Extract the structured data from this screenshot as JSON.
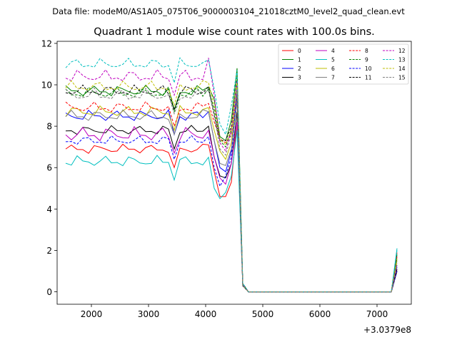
{
  "suptitle": "Data file: modeM0/AS1A05_075T06_9000003104_21018cztM0_level2_quad_clean.evt",
  "chart_data": {
    "type": "line",
    "title": "Quadrant 1 module wise count rates with 100.0s bins.",
    "xlabel": "",
    "ylabel": "",
    "x_offset_label": "+3.0379e8",
    "xlim": [
      1400,
      7600
    ],
    "ylim": [
      -0.6,
      12.1
    ],
    "xticks": [
      2000,
      3000,
      4000,
      5000,
      6000,
      7000
    ],
    "yticks": [
      0,
      2,
      4,
      6,
      8,
      10,
      12
    ],
    "grid": false,
    "legend_position": "top-right",
    "x": [
      1550,
      1650,
      1750,
      1850,
      1950,
      2050,
      2150,
      2250,
      2350,
      2450,
      2550,
      2650,
      2750,
      2850,
      2950,
      3050,
      3150,
      3250,
      3350,
      3450,
      3550,
      3650,
      3750,
      3850,
      3950,
      4050,
      4150,
      4250,
      4350,
      4450,
      4550,
      4650,
      4750,
      4850,
      4950,
      5050,
      5150,
      5250,
      5350,
      5450,
      5550,
      5650,
      5750,
      5850,
      5950,
      6050,
      6150,
      6250,
      6350,
      6450,
      6550,
      6650,
      6750,
      6850,
      6950,
      7050,
      7150,
      7250,
      7350
    ],
    "series": [
      {
        "name": "0",
        "color": "#ff0000",
        "dash": "solid",
        "base": 6.9,
        "amp": 0.25,
        "tr": [
          5.8,
          4.6,
          4.6,
          5.3,
          8.2,
          0.3,
          1.9
        ]
      },
      {
        "name": "1",
        "color": "#008000",
        "dash": "solid",
        "base": 9.7,
        "amp": 0.3,
        "tr": [
          9.3,
          7.5,
          7.3,
          8.3,
          10.8,
          0.4,
          1.8
        ]
      },
      {
        "name": "2",
        "color": "#0000ff",
        "dash": "solid",
        "base": 8.5,
        "amp": 0.3,
        "tr": [
          7.3,
          6.0,
          5.8,
          6.8,
          9.5,
          0.3,
          1.2
        ]
      },
      {
        "name": "3",
        "color": "#000000",
        "dash": "solid",
        "base": 7.8,
        "amp": 0.25,
        "tr": [
          6.5,
          5.6,
          5.5,
          6.2,
          8.7,
          0.3,
          1.0
        ]
      },
      {
        "name": "4",
        "color": "#bf00bf",
        "dash": "solid",
        "base": 7.6,
        "amp": 0.4,
        "tr": [
          6.5,
          5.5,
          5.2,
          6.2,
          8.2,
          0.3,
          1.1
        ]
      },
      {
        "name": "5",
        "color": "#00bfbf",
        "dash": "solid",
        "base": 6.3,
        "amp": 0.3,
        "tr": [
          5.0,
          4.5,
          4.8,
          5.6,
          7.8,
          0.3,
          2.1
        ]
      },
      {
        "name": "6",
        "color": "#bfbf00",
        "dash": "solid",
        "base": 8.7,
        "amp": 0.3,
        "tr": [
          7.8,
          6.8,
          6.4,
          7.2,
          9.6,
          0.3,
          1.6
        ]
      },
      {
        "name": "7",
        "color": "#808080",
        "dash": "solid",
        "base": 8.5,
        "amp": 0.3,
        "tr": [
          7.3,
          6.2,
          6.1,
          6.9,
          9.2,
          0.3,
          1.3
        ]
      },
      {
        "name": "8",
        "color": "#ff0000",
        "dash": "dashed",
        "base": 8.9,
        "amp": 0.3,
        "tr": [
          8.2,
          7.4,
          7.2,
          7.6,
          9.7,
          0.3,
          1.7
        ]
      },
      {
        "name": "9",
        "color": "#008000",
        "dash": "dashed",
        "base": 9.6,
        "amp": 0.3,
        "tr": [
          8.8,
          7.3,
          7.0,
          7.8,
          10.4,
          0.4,
          1.6
        ]
      },
      {
        "name": "10",
        "color": "#0000ff",
        "dash": "dashed",
        "base": 7.3,
        "amp": 0.25,
        "tr": [
          6.0,
          5.1,
          5.6,
          6.5,
          9.8,
          0.3,
          1.0
        ]
      },
      {
        "name": "11",
        "color": "#000000",
        "dash": "dashed",
        "base": 9.7,
        "amp": 0.3,
        "tr": [
          8.5,
          7.3,
          7.3,
          8.0,
          10.2,
          0.3,
          1.1
        ]
      },
      {
        "name": "12",
        "color": "#bf00bf",
        "dash": "dashed",
        "base": 10.4,
        "amp": 0.35,
        "tr": [
          9.5,
          7.2,
          6.8,
          7.8,
          10.2,
          0.4,
          1.4
        ]
      },
      {
        "name": "13",
        "color": "#00bfbf",
        "dash": "dashed",
        "base": 11.0,
        "amp": 0.3,
        "tr": [
          9.8,
          8.1,
          7.6,
          9.0,
          10.7,
          0.4,
          2.0
        ]
      },
      {
        "name": "14",
        "color": "#bfbf00",
        "dash": "dashed",
        "base": 9.9,
        "amp": 0.3,
        "tr": [
          9.0,
          7.4,
          7.1,
          7.9,
          10.1,
          0.3,
          1.5
        ]
      },
      {
        "name": "15",
        "color": "#808080",
        "dash": "dashed",
        "base": 9.5,
        "amp": 0.35,
        "tr": [
          8.6,
          6.9,
          6.6,
          7.6,
          9.8,
          0.3,
          1.3
        ]
      }
    ]
  }
}
